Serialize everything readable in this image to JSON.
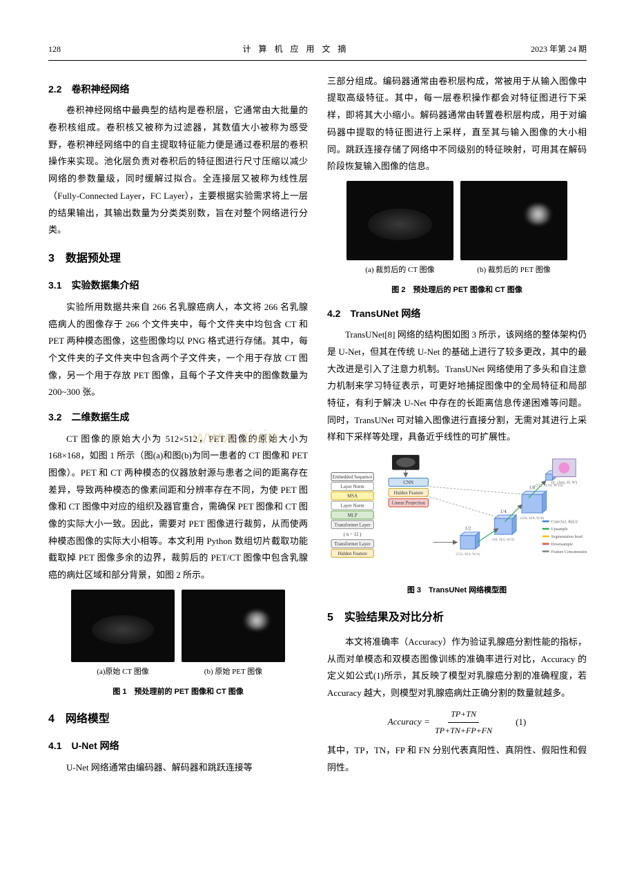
{
  "header": {
    "page_number": "128",
    "journal_title": "计 算 机 应 用 文 摘",
    "issue": "2023 年第 24 期"
  },
  "left_column": {
    "s22_heading": "2.2　卷积神经网络",
    "s22_p1": "卷积神经网络中最典型的结构是卷积层，它通常由大批量的卷积核组成。卷积核又被称为过滤器，其数值大小被称为感受野，卷积神经网络中的自主提取特征能力便是通过卷积层的卷积操作来实现。池化层负责对卷积后的特征图进行尺寸压缩以减少网络的参数量级，同时缓解过拟合。全连接层又被称为线性层（Fully-Connected Layer，FC Layer），主要根据实验需求将上一层的结果输出，其输出数量为分类类别数，旨在对整个网络进行分类。",
    "s3_heading": "3　数据预处理",
    "s31_heading": "3.1　实验数据集介绍",
    "s31_p1": "实验所用数据共来自 266 名乳腺癌病人，本文将 266 名乳腺癌病人的图像存于 266 个文件夹中，每个文件夹中均包含 CT 和 PET 两种模态图像，这些图像均以 PNG 格式进行存储。其中，每个文件夹的子文件夹中包含两个子文件夹，一个用于存放 CT 图像，另一个用于存放 PET 图像，且每个子文件夹中的图像数量为 200~300 张。",
    "s32_heading": "3.2　二维数据生成",
    "s32_p1": "CT 图像的原始大小为 512×512，PET 图像的原始大小为 168×168，如图 1 所示（图(a)和图(b)为同一患者的 CT 图像和 PET 图像）。PET 和 CT 两种模态的仪器放射源与患者之间的距离存在差异，导致两种模态的像素间距和分辨率存在不同，为使 PET 图像和 CT 图像中对应的组织及器官重合，需确保 PET 图像和 CT 图像的实际大小一致。因此，需要对 PET 图像进行裁剪，从而使两种模态图像的实际大小相等。本文利用 Python 数组切片截取功能截取掉 PET 图像多余的边界，裁剪后的 PET/CT 图像中包含乳腺癌的病灶区域和部分背景，如图 2 所示。",
    "fig1_a": "(a)原始 CT 图像",
    "fig1_b": "(b) 原始 PET 图像",
    "fig1_caption": "图 1　预处理前的 PET 图像和 CT 图像",
    "s4_heading": "4　网络模型",
    "s41_heading": "4.1　U-Net 网络",
    "s41_p1": "U-Net 网络通常由编码器、解码器和跳跃连接等"
  },
  "right_column": {
    "cont_p1": "三部分组成。编码器通常由卷积层构成，常被用于从输入图像中提取高级特征。其中，每一层卷积操作都会对特征图进行下采样，即将其大小缩小。解码器通常由转置卷积层构成，用于对编码器中提取的特征图进行上采样，直至其与输入图像的大小相同。跳跃连接存储了网络中不同级别的特征映射，可用其在解码阶段恢复输入图像的信息。",
    "fig2_a": "(a) 裁剪后的 CT 图像",
    "fig2_b": "(b) 裁剪后的 PET 图像",
    "fig2_caption": "图 2　预处理后的 PET 图像和 CT 图像",
    "s42_heading": "4.2　TransUNet 网络",
    "s42_p1": "TransUNet[8] 网络的结构图如图 3 所示，该网络的整体架构仍是 U-Net，但其在传统 U-Net 的基础上进行了较多更改，其中的最大改进是引入了注意力机制。TransUNet 网络使用了多头和自注意力机制来学习特征表示，可更好地捕捉图像中的全局特征和局部特征，有利于解决 U-Net 中存在的长距离信息传递困难等问题。同时，TransUNet 可对输入图像进行直接分割，无需对其进行上采样和下采样等处理，具备近乎线性的可扩展性。",
    "fig3_caption": "图 3　TransUNet 网络模型图",
    "s5_heading": "5　实验结果及对比分析",
    "s5_p1": "本文将准确率（Accuracy）作为验证乳腺癌分割性能的指标，从而对单模态和双模态图像训练的准确率进行对比，Accuracy 的定义如公式(1)所示，其反映了模型对乳腺癌分割的准确程度，若 Accuracy 越大，则模型对乳腺癌病灶正确分割的数量就越多。",
    "formula_lhs": "Accuracy =",
    "formula_num": "TP+TN",
    "formula_den": "TP+TN+FP+FN",
    "formula_no": "(1)",
    "s5_p2": "其中，TP，TN，FP 和 FN 分别代表真阳性、真阴性、假阳性和假阴性。"
  },
  "transunet_diagram": {
    "type": "flowchart",
    "background_color": "#ffffff",
    "legend": [
      {
        "label": "Conv3x3, ReLU",
        "color": "#3b7dd8"
      },
      {
        "label": "Upsample",
        "color": "#26b050"
      },
      {
        "label": "Segmentation head",
        "color": "#f2c400"
      },
      {
        "label": "Downsample",
        "color": "#e74c3c"
      },
      {
        "label": "Feature Concatenation",
        "color": "#808080"
      }
    ],
    "left_stack": [
      {
        "label": "Embedded Sequence",
        "fill": "#ffffff",
        "border": "#666"
      },
      {
        "label": "Layer Norm",
        "fill": "#ffffff",
        "border": "#999"
      },
      {
        "label": "MSA",
        "fill": "#fff3b0",
        "border": "#d4a800"
      },
      {
        "label": "Layer Norm",
        "fill": "#ffffff",
        "border": "#999"
      },
      {
        "label": "MLP",
        "fill": "#d9ead3",
        "border": "#6aa84f"
      },
      {
        "label": "Transformer Layer",
        "fill": "#f0f0f0",
        "border": "#888"
      },
      {
        "label": "( n = 12 )",
        "fill": "none",
        "border": "none"
      },
      {
        "label": "Transformer Layer",
        "fill": "#f0f0f0",
        "border": "#888"
      },
      {
        "label": "Hidden Feature",
        "fill": "#fff0cc",
        "border": "#c9a227"
      }
    ],
    "mid_stack": [
      {
        "label": "CNN",
        "fill": "#cfe2f3",
        "border": "#3d85c6"
      },
      {
        "label": "Hidden Feature",
        "fill": "#fff0cc",
        "border": "#c9a227"
      },
      {
        "label": "Linear Projection",
        "fill": "#f4cccc",
        "border": "#cc4125"
      }
    ],
    "decoder_blocks": [
      {
        "scale": "1/2",
        "dim": "(512, H/4, W/4)",
        "color": "#a4c2f4"
      },
      {
        "scale": "1/4",
        "dim": "(64, H/2, W/2)",
        "color": "#a4c2f4"
      },
      {
        "scale": "1/8",
        "dim": "(256, H/8, W/8)",
        "color": "#a4c2f4"
      },
      {
        "scale": "",
        "dim": "(512, H/16, W/16)",
        "color": "#a4c2f4"
      }
    ],
    "output_label": "(n_class, H, W)",
    "output_color": "#d9d2e9",
    "line_width": 1.5,
    "font_size": 7
  },
  "watermark_text": "www.zixin"
}
